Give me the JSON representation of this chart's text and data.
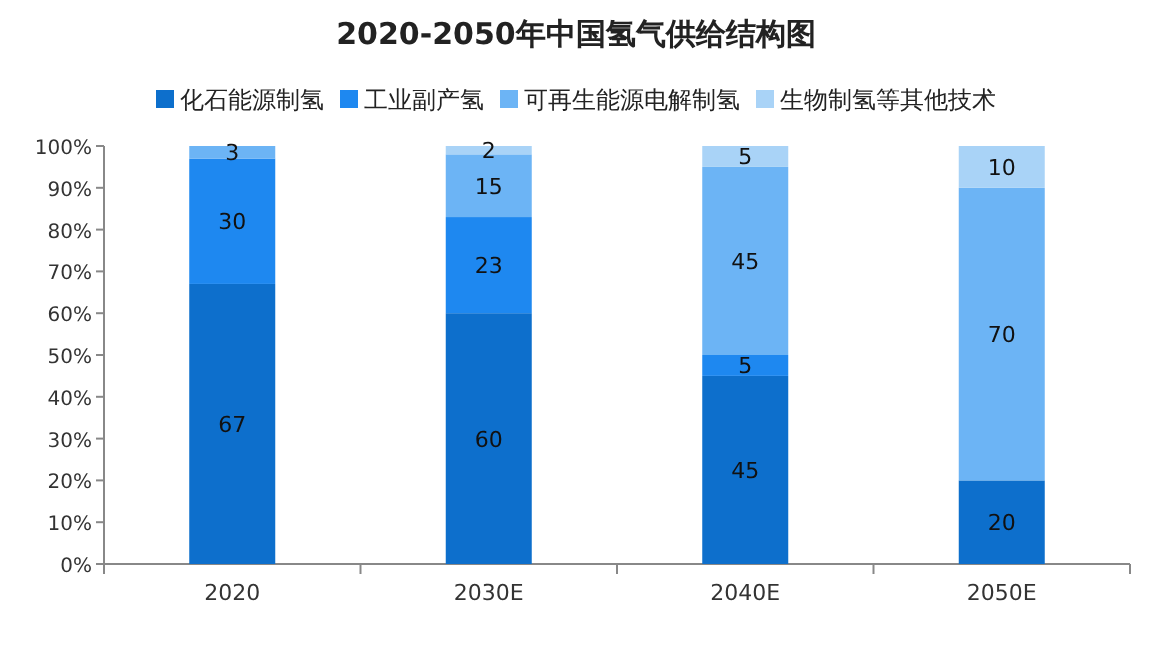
{
  "chart_data": {
    "type": "bar",
    "title": "2020-2050年中国氢气供给结构图",
    "stacked": true,
    "data_labels": true,
    "legend": "top",
    "categories": [
      "2020",
      "2030E",
      "2040E",
      "2050E"
    ],
    "series": [
      {
        "name": "化石能源制氢",
        "color": "#0d6fcc",
        "values": [
          67,
          60,
          45,
          20
        ]
      },
      {
        "name": "工业副产氢",
        "color": "#1e88f0",
        "values": [
          30,
          23,
          5,
          null
        ]
      },
      {
        "name": "可再生能源电解制氢",
        "color": "#6cb4f5",
        "values": [
          3,
          15,
          45,
          70
        ]
      },
      {
        "name": "生物制氢等其他技术",
        "color": "#a9d3f7",
        "values": [
          null,
          2,
          5,
          10
        ]
      }
    ],
    "ylim": [
      0,
      100
    ],
    "yticks": [
      {
        "value": 0,
        "label": "0%"
      },
      {
        "value": 10,
        "label": "10%"
      },
      {
        "value": 20,
        "label": "20%"
      },
      {
        "value": 30,
        "label": "30%"
      },
      {
        "value": 40,
        "label": "40%"
      },
      {
        "value": 50,
        "label": "50%"
      },
      {
        "value": 60,
        "label": "60%"
      },
      {
        "value": 70,
        "label": "70%"
      },
      {
        "value": 80,
        "label": "80%"
      },
      {
        "value": 90,
        "label": "90%"
      },
      {
        "value": 100,
        "label": "100%"
      }
    ]
  }
}
